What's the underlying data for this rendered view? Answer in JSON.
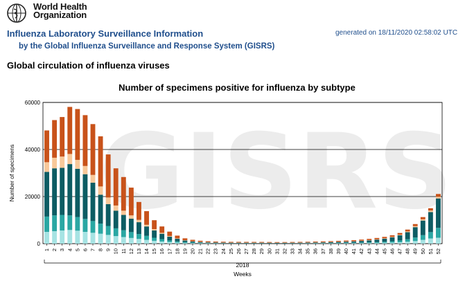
{
  "header": {
    "logo_line1": "World Health",
    "logo_line2": "Organization",
    "title": "Influenza Laboratory Surveillance Information",
    "subtitle": "by the Global Influenza Surveillance and Response System (GISRS)",
    "generated": "generated on 18/11/2020 02:58:02 UTC",
    "section_title": "Global circulation of influenza viruses",
    "watermark": "GISRS"
  },
  "colors": {
    "light_cyan": "#a6e3e3",
    "teal": "#2aa7a3",
    "dark_teal": "#0d5c63",
    "peach": "#f8c89a",
    "orange": "#c8521a",
    "brown": "#6b3a1f"
  },
  "chart_data": {
    "type": "bar",
    "stacked": true,
    "title": "Number of specimens positive for influenza by subtype",
    "xlabel": "Weeks",
    "ylabel": "Number of specimens",
    "year_label": "2018",
    "ylim": [
      0,
      60000
    ],
    "yticks": [
      0,
      20000,
      40000,
      60000
    ],
    "grid": true,
    "categories": [
      "1",
      "2",
      "3",
      "4",
      "5",
      "6",
      "7",
      "8",
      "9",
      "10",
      "11",
      "12",
      "13",
      "14",
      "15",
      "16",
      "17",
      "18",
      "19",
      "20",
      "21",
      "22",
      "23",
      "24",
      "25",
      "26",
      "27",
      "28",
      "29",
      "30",
      "31",
      "32",
      "33",
      "34",
      "35",
      "36",
      "37",
      "38",
      "39",
      "40",
      "41",
      "42",
      "43",
      "44",
      "45",
      "46",
      "47",
      "48",
      "49",
      "50",
      "51",
      "52"
    ],
    "series_colors": [
      "#a6e3e3",
      "#2aa7a3",
      "#0d5c63",
      "#f8c89a",
      "#c8521a",
      "#6b3a1f"
    ],
    "series": [
      {
        "values": [
          5000,
          5300,
          5600,
          5800,
          5500,
          5000,
          4600,
          4200,
          3700,
          3200,
          2800,
          2400,
          2000,
          1600,
          1200,
          900,
          650,
          450,
          300,
          220,
          170,
          140,
          120,
          110,
          100,
          100,
          100,
          100,
          100,
          90,
          90,
          90,
          100,
          100,
          110,
          120,
          130,
          140,
          150,
          170,
          190,
          220,
          250,
          300,
          360,
          450,
          580,
          800,
          1100,
          1600,
          2200,
          2500
        ]
      },
      {
        "values": [
          6500,
          6700,
          6600,
          6200,
          5800,
          5500,
          5000,
          4300,
          3800,
          3300,
          2900,
          2500,
          2100,
          1700,
          1300,
          1000,
          700,
          500,
          330,
          230,
          160,
          120,
          100,
          90,
          80,
          80,
          80,
          80,
          80,
          80,
          70,
          80,
          80,
          90,
          100,
          110,
          120,
          130,
          150,
          170,
          200,
          240,
          290,
          350,
          430,
          560,
          760,
          1050,
          1500,
          2000,
          2700,
          4200
        ]
      },
      {
        "values": [
          19000,
          20000,
          20000,
          21800,
          20500,
          19000,
          16300,
          12300,
          9300,
          7500,
          6500,
          5700,
          5000,
          4000,
          3100,
          2300,
          1600,
          1100,
          680,
          470,
          330,
          260,
          230,
          210,
          200,
          200,
          200,
          190,
          190,
          180,
          170,
          180,
          190,
          200,
          220,
          250,
          290,
          340,
          400,
          480,
          560,
          680,
          850,
          1050,
          1300,
          1650,
          2200,
          3000,
          4400,
          6200,
          8500,
          12500
        ]
      },
      {
        "values": [
          4100,
          4500,
          4800,
          4300,
          3800,
          3500,
          3300,
          3500,
          2800,
          2200,
          1800,
          1400,
          1000,
          700,
          550,
          400,
          300,
          200,
          150,
          110,
          90,
          80,
          70,
          65,
          60,
          60,
          60,
          60,
          60,
          60,
          60,
          60,
          60,
          65,
          70,
          75,
          80,
          85,
          90,
          100,
          110,
          120,
          130,
          150,
          180,
          220,
          280,
          350,
          450,
          550,
          650,
          750
        ]
      },
      {
        "values": [
          13500,
          16000,
          16800,
          20000,
          21600,
          21600,
          21600,
          21300,
          18300,
          15800,
          14300,
          11800,
          7600,
          5800,
          3800,
          2700,
          1850,
          1150,
          790,
          590,
          470,
          400,
          350,
          325,
          310,
          310,
          300,
          300,
          290,
          280,
          270,
          260,
          270,
          285,
          290,
          310,
          330,
          350,
          380,
          400,
          420,
          460,
          500,
          550,
          600,
          650,
          700,
          770,
          860,
          930,
          1000,
          1150
        ]
      },
      {
        "values": [
          0,
          0,
          0,
          0,
          0,
          0,
          0,
          0,
          0,
          0,
          0,
          0,
          0,
          0,
          0,
          0,
          0,
          0,
          0,
          0,
          0,
          0,
          0,
          0,
          0,
          0,
          0,
          0,
          0,
          0,
          0,
          0,
          0,
          0,
          0,
          0,
          0,
          0,
          0,
          0,
          0,
          0,
          0,
          0,
          0,
          0,
          0,
          0,
          0,
          0,
          0,
          0
        ]
      }
    ]
  }
}
